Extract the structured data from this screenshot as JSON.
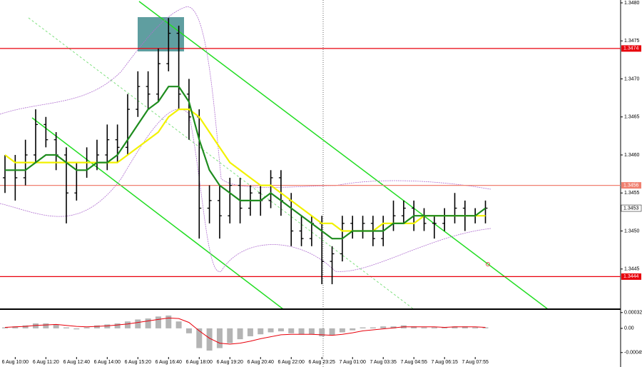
{
  "chart_data": {
    "type": "candlestick",
    "categories": [
      null,
      "6 Aug 10:00",
      null,
      null,
      "6 Aug 11:20",
      null,
      null,
      "6 Aug 12:40",
      null,
      null,
      "6 Aug 14:00",
      null,
      null,
      "6 Aug 15:20",
      null,
      null,
      "6 Aug 16:40",
      null,
      null,
      "6 Aug 18:00",
      null,
      null,
      "6 Aug 19:20",
      null,
      null,
      "6 Aug 20:40",
      null,
      null,
      "6 Aug 22:00",
      null,
      null,
      "6 Aug 23:25",
      null,
      null,
      "7 Aug 01:00",
      null,
      null,
      "7 Aug 03:35",
      null,
      null,
      "7 Aug 04:55",
      null,
      null,
      "7 Aug 06:15",
      null,
      null,
      "7 Aug 07:55",
      null
    ],
    "open": [
      1.3457,
      1.3458,
      1.3457,
      1.346,
      1.3464,
      1.3462,
      1.346,
      1.3455,
      1.3458,
      1.3459,
      1.346,
      1.3462,
      1.3461,
      1.3466,
      1.3469,
      1.3468,
      1.3472,
      1.3476,
      1.3468,
      1.3465,
      1.3453,
      1.3454,
      1.3452,
      1.3456,
      1.3453,
      1.3455,
      1.3454,
      1.3457,
      1.3454,
      1.345,
      1.3449,
      1.3451,
      1.3446,
      1.3447,
      1.3451,
      1.345,
      1.3451,
      1.3449,
      1.3451,
      1.3452,
      1.3453,
      1.3452,
      1.3451,
      1.3451,
      1.3452,
      1.3453,
      1.3452,
      1.3452
    ],
    "high": [
      1.346,
      1.346,
      1.3462,
      1.3466,
      1.3465,
      1.3463,
      1.3461,
      1.3459,
      1.3461,
      1.3462,
      1.3464,
      1.3464,
      1.3468,
      1.3471,
      1.3471,
      1.3474,
      1.3478,
      1.3477,
      1.347,
      1.3466,
      1.3456,
      1.3456,
      1.3457,
      1.3457,
      1.3456,
      1.3456,
      1.3458,
      1.3458,
      1.3455,
      1.3452,
      1.3452,
      1.3452,
      1.3448,
      1.3452,
      1.3452,
      1.3452,
      1.3452,
      1.3452,
      1.3454,
      1.3454,
      1.3454,
      1.3453,
      1.3452,
      1.3453,
      1.3455,
      1.3454,
      1.3453,
      1.3454
    ],
    "low": [
      1.3455,
      1.3454,
      1.3456,
      1.3459,
      1.3461,
      1.3458,
      1.3451,
      1.3454,
      1.3457,
      1.3458,
      1.3458,
      1.3459,
      1.346,
      1.3465,
      1.3466,
      1.3467,
      1.3471,
      1.3466,
      1.3462,
      1.3449,
      1.3451,
      1.3449,
      1.3451,
      1.3451,
      1.3452,
      1.3452,
      1.3453,
      1.3452,
      1.3448,
      1.3448,
      1.3448,
      1.3443,
      1.3443,
      1.3446,
      1.3449,
      1.3449,
      1.3448,
      1.3448,
      1.345,
      1.3451,
      1.345,
      1.345,
      1.3449,
      1.345,
      1.3451,
      1.345,
      1.3451,
      1.3451
    ],
    "close": [
      1.3458,
      1.3457,
      1.346,
      1.3464,
      1.3462,
      1.346,
      1.3455,
      1.3458,
      1.3459,
      1.346,
      1.3462,
      1.3461,
      1.3466,
      1.3469,
      1.3468,
      1.3472,
      1.3476,
      1.3468,
      1.3465,
      1.3453,
      1.3454,
      1.3452,
      1.3456,
      1.3453,
      1.3455,
      1.3454,
      1.3457,
      1.3454,
      1.345,
      1.3449,
      1.3451,
      1.3446,
      1.3447,
      1.3451,
      1.345,
      1.3451,
      1.3449,
      1.3451,
      1.3452,
      1.3453,
      1.3452,
      1.3451,
      1.3451,
      1.3452,
      1.3453,
      1.3452,
      1.3452,
      1.3453
    ],
    "candle_color": "#000000",
    "overlays": [
      {
        "color": "#f2f200",
        "values": [
          1.346,
          1.3459,
          1.3459,
          1.3459,
          1.3459,
          1.3459,
          1.3459,
          1.3459,
          1.3459,
          1.3459,
          1.3459,
          1.3459,
          1.346,
          1.3461,
          1.3462,
          1.3463,
          1.3465,
          1.3466,
          1.3466,
          1.3465,
          1.3463,
          1.3461,
          1.3459,
          1.3458,
          1.3457,
          1.3456,
          1.3456,
          1.3455,
          1.3454,
          1.3453,
          1.3452,
          1.3451,
          1.3451,
          1.345,
          1.345,
          1.345,
          1.345,
          1.3451,
          1.3451,
          1.3451,
          1.3451,
          1.3452,
          1.3452,
          1.3452,
          1.3452,
          1.3452,
          1.3452,
          1.3452
        ]
      },
      {
        "color": "#1e8c1e",
        "values": [
          1.3458,
          1.3458,
          1.3458,
          1.3459,
          1.346,
          1.346,
          1.3459,
          1.3458,
          1.3458,
          1.3459,
          1.3459,
          1.346,
          1.3462,
          1.3464,
          1.3466,
          1.3467,
          1.3469,
          1.3469,
          1.3467,
          1.3462,
          1.3458,
          1.3456,
          1.3455,
          1.3454,
          1.3454,
          1.3454,
          1.3455,
          1.3454,
          1.3453,
          1.3452,
          1.3451,
          1.345,
          1.3449,
          1.3449,
          1.345,
          1.345,
          1.345,
          1.345,
          1.3451,
          1.3451,
          1.3452,
          1.3452,
          1.3452,
          1.3452,
          1.3452,
          1.3452,
          1.3452,
          1.3453
        ]
      }
    ],
    "ylim": [
      1.344,
      1.348
    ],
    "yticks": [
      1.3445,
      {
        "value": 1.345,
        "label": "1.3450"
      },
      1.3455,
      {
        "value": 1.346,
        "label": "1.3460"
      },
      1.3465,
      {
        "value": 1.347,
        "label": "1.3470"
      },
      1.3475,
      {
        "value": 1.348,
        "label": "1.3480"
      }
    ],
    "levels": [
      {
        "value": 1.3474,
        "color": "#e8000b"
      },
      {
        "value": 1.3456,
        "color": "#f08070"
      },
      {
        "value": 1.3444,
        "color": "#e8000b"
      }
    ],
    "last_price": 1.3453,
    "macd": {
      "type": "bar",
      "color": "#b4b4b4",
      "signal_color": "#e8000b",
      "values": [
        2e-05,
        4e-05,
        6e-05,
        0.0001,
        0.0001,
        8e-05,
        2e-05,
        -2e-05,
        2e-05,
        6e-05,
        8e-05,
        0.0001,
        0.00014,
        0.00018,
        0.0002,
        0.00024,
        0.00026,
        0.00014,
        -0.0001,
        -0.0004,
        -0.00045,
        -0.0004,
        -0.0003,
        -0.00022,
        -0.00016,
        -0.00012,
        -8e-05,
        -6e-05,
        -0.0001,
        -0.00012,
        -0.00012,
        -0.00016,
        -0.00014,
        -8e-05,
        -4e-05,
        2e-05,
        2e-05,
        4e-05,
        4e-05,
        6e-05,
        4e-05,
        2e-05,
        2e-05,
        2e-05,
        4e-05,
        4e-05,
        2e-05,
        2e-05
      ],
      "signal": [
        2e-05,
        3e-05,
        4e-05,
        6e-05,
        7e-05,
        8e-05,
        6e-05,
        4e-05,
        3e-05,
        4e-05,
        5e-05,
        7e-05,
        9e-05,
        0.00012,
        0.00015,
        0.00018,
        0.00021,
        0.0002,
        0.00012,
        -5e-05,
        -0.0002,
        -0.0003,
        -0.00032,
        -0.0003,
        -0.00026,
        -0.00021,
        -0.00017,
        -0.00013,
        -0.00012,
        -0.00012,
        -0.00012,
        -0.00013,
        -0.00014,
        -0.00012,
        -9e-05,
        -5e-05,
        -3e-05,
        -1e-05,
        1e-05,
        3e-05,
        3e-05,
        3e-05,
        3e-05,
        2e-05,
        3e-05,
        3e-05,
        3e-05,
        2e-05
      ],
      "ylim": [
        -0.00058,
        0.00036
      ],
      "yticks": [
        0.00032,
        {
          "value": 0,
          "label": "0.00"
        },
        -0.00049
      ]
    }
  }
}
